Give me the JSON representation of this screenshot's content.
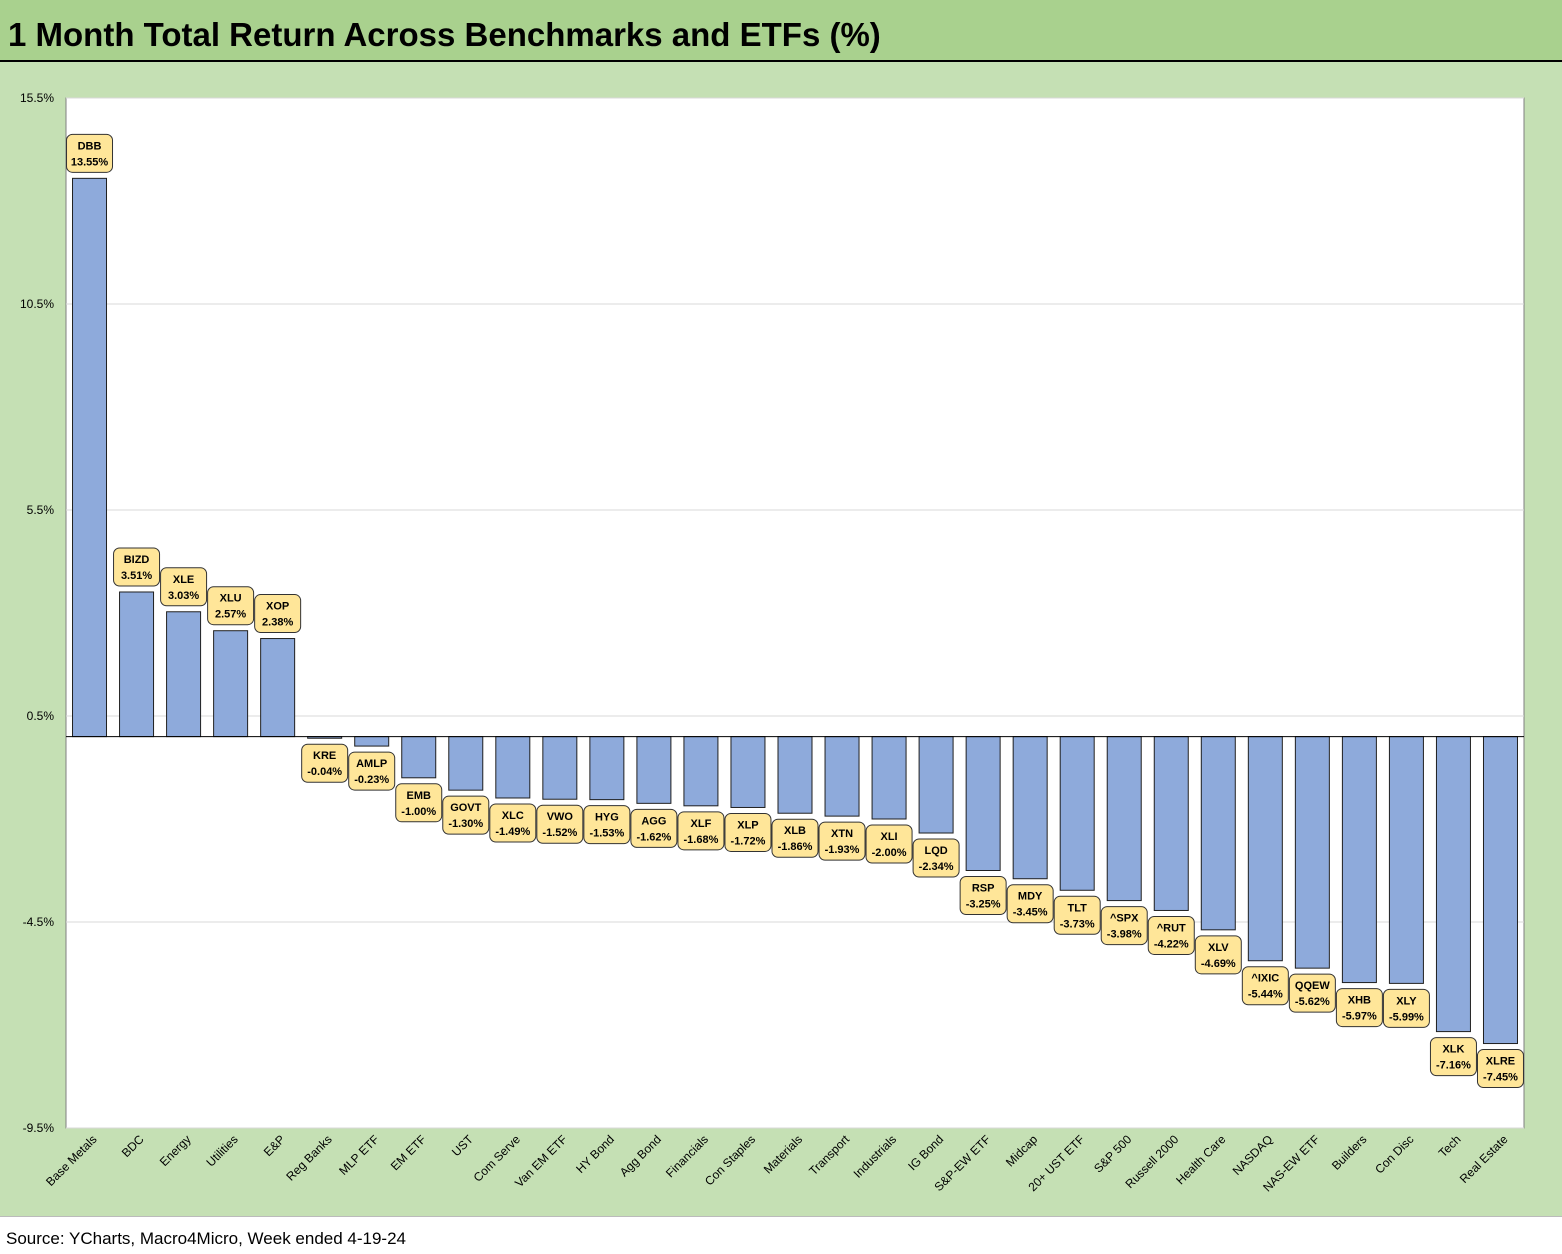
{
  "title": "1 Month Total Return Across Benchmarks and ETFs (%)",
  "source": "Source: YCharts, Macro4Micro, Week ended 4-19-24",
  "colors": {
    "bar": "#8eaadb",
    "bar_stroke": "#1f1f1f",
    "label_bg": "#ffe699",
    "background": "#c5e0b4",
    "title_bg": "#a9d18e",
    "plot_bg": "#ffffff",
    "grid": "#d9d9d9"
  },
  "chart_data": {
    "type": "bar",
    "ylim": [
      -9.5,
      15.5
    ],
    "yticks": [
      "15.5%",
      "10.5%",
      "5.5%",
      "0.5%",
      "-4.5%",
      "-9.5%"
    ],
    "ytick_values": [
      15.5,
      10.5,
      5.5,
      0.5,
      -4.5,
      -9.5
    ],
    "grid": true,
    "categories": [
      "Base Metals",
      "BDC",
      "Energy",
      "Utilities",
      "E&P",
      "Reg Banks",
      "MLP ETF",
      "EM ETF",
      "UST",
      "Com Serve",
      "Van EM ETF",
      "HY Bond",
      "Agg Bond",
      "Financials",
      "Con Staples",
      "Materials",
      "Transport",
      "Industrials",
      "IG Bond",
      "S&P-EW ETF",
      "Midcap",
      "20+ UST ETF",
      "S&P 500",
      "Russell 2000",
      "Health Care",
      "NASDAQ",
      "NAS-EW ETF",
      "Builders",
      "Con Disc",
      "Tech",
      "Real Estate"
    ],
    "tickers": [
      "DBB",
      "BIZD",
      "XLE",
      "XLU",
      "XOP",
      "KRE",
      "AMLP",
      "EMB",
      "GOVT",
      "XLC",
      "VWO",
      "HYG",
      "AGG",
      "XLF",
      "XLP",
      "XLB",
      "XTN",
      "XLI",
      "LQD",
      "RSP",
      "MDY",
      "TLT",
      "^SPX",
      "^RUT",
      "XLV",
      "^IXIC",
      "QQEW",
      "XHB",
      "XLY",
      "XLK",
      "XLRE"
    ],
    "values": [
      13.55,
      3.51,
      3.03,
      2.57,
      2.38,
      -0.04,
      -0.23,
      -1.0,
      -1.3,
      -1.49,
      -1.52,
      -1.53,
      -1.62,
      -1.68,
      -1.72,
      -1.86,
      -1.93,
      -2.0,
      -2.34,
      -3.25,
      -3.45,
      -3.73,
      -3.98,
      -4.22,
      -4.69,
      -5.44,
      -5.62,
      -5.97,
      -5.99,
      -7.16,
      -7.45
    ],
    "value_labels": [
      "13.55%",
      "3.51%",
      "3.03%",
      "2.57%",
      "2.38%",
      "-0.04%",
      "-0.23%",
      "-1.00%",
      "-1.30%",
      "-1.49%",
      "-1.52%",
      "-1.53%",
      "-1.62%",
      "-1.68%",
      "-1.72%",
      "-1.86%",
      "-1.93%",
      "-2.00%",
      "-2.34%",
      "-3.25%",
      "-3.45%",
      "-3.73%",
      "-3.98%",
      "-4.22%",
      "-4.69%",
      "-5.44%",
      "-5.62%",
      "-5.97%",
      "-5.99%",
      "-7.16%",
      "-7.45%"
    ]
  }
}
